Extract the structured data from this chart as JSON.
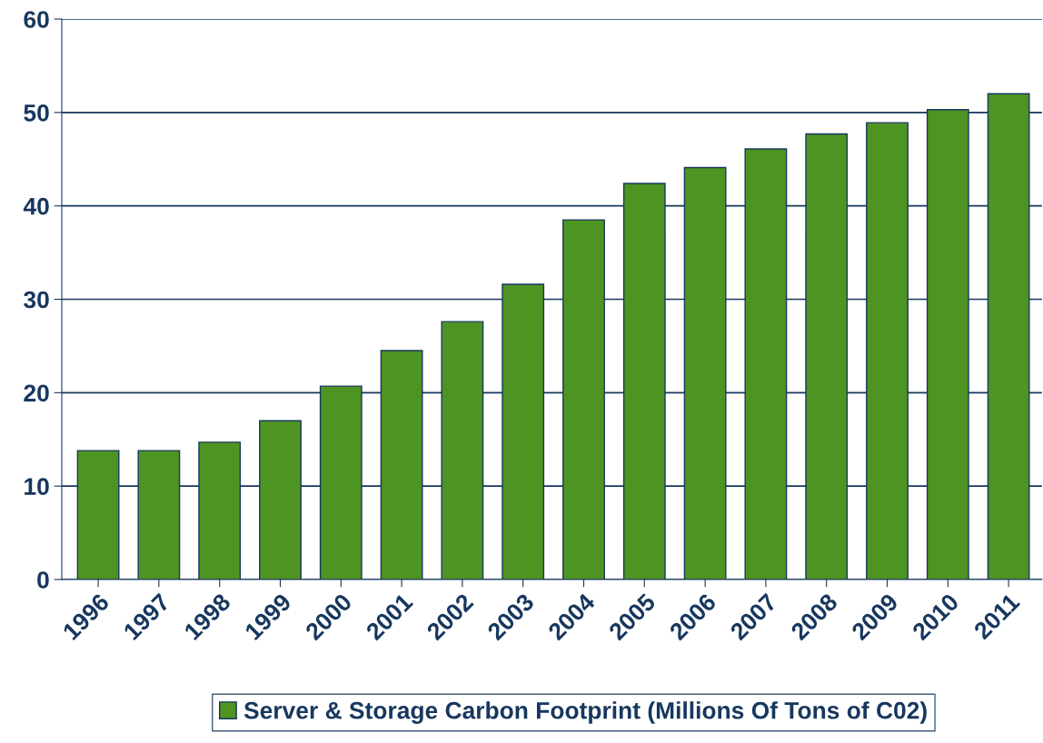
{
  "chart_data": {
    "type": "bar",
    "categories": [
      "1996",
      "1997",
      "1998",
      "1999",
      "2000",
      "2001",
      "2002",
      "2003",
      "2004",
      "2005",
      "2006",
      "2007",
      "2008",
      "2009",
      "2010",
      "2011"
    ],
    "series": [
      {
        "name": "Server & Storage Carbon Footprint (Millions Of Tons of C02)",
        "color": "#4e9422",
        "values": [
          13.8,
          13.8,
          14.7,
          17.0,
          20.7,
          24.5,
          27.6,
          31.6,
          38.5,
          42.4,
          44.1,
          46.1,
          47.7,
          48.9,
          50.3,
          52.0
        ]
      }
    ],
    "ylim": [
      0,
      60
    ],
    "yticks": [
      0,
      10,
      20,
      30,
      40,
      50,
      60
    ],
    "grid": "y",
    "legend": "bottom"
  }
}
